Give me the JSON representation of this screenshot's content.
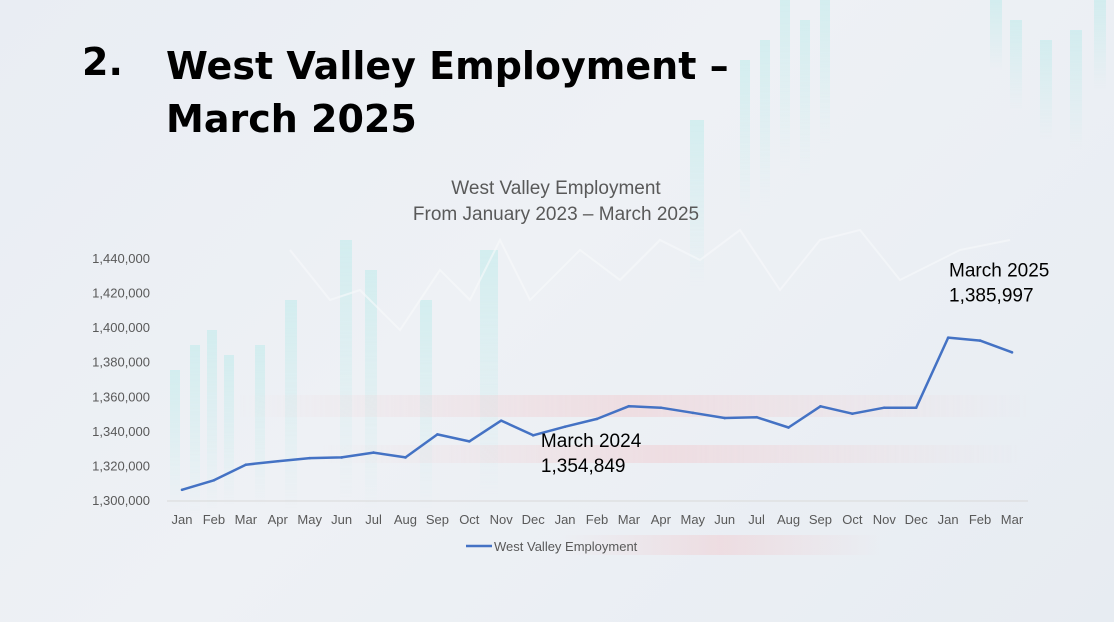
{
  "slide": {
    "number": "2.",
    "title_line1": "West Valley Employment –",
    "title_line2": "March 2025"
  },
  "chart_data": {
    "type": "line",
    "title": "West Valley Employment",
    "subtitle": "From January 2023 – March 2025",
    "categories": [
      "Jan",
      "Feb",
      "Mar",
      "Apr",
      "May",
      "Jun",
      "Jul",
      "Aug",
      "Sep",
      "Oct",
      "Nov",
      "Dec",
      "Jan",
      "Feb",
      "Mar",
      "Apr",
      "May",
      "Jun",
      "Jul",
      "Aug",
      "Sep",
      "Oct",
      "Nov",
      "Dec",
      "Jan",
      "Feb",
      "Mar"
    ],
    "series": [
      {
        "name": "West Valley Employment",
        "color": "#4472c4",
        "values": [
          1306500,
          1312000,
          1321000,
          1323000,
          1324800,
          1325200,
          1328000,
          1325200,
          1338500,
          1334500,
          1346500,
          1338000,
          1343000,
          1347500,
          1354849,
          1354000,
          1351000,
          1348000,
          1348500,
          1342500,
          1354800,
          1350500,
          1354000,
          1354000,
          1394500,
          1392800,
          1385997
        ]
      }
    ],
    "ylim": [
      1300000,
      1440000
    ],
    "yticks": [
      1300000,
      1320000,
      1340000,
      1360000,
      1380000,
      1400000,
      1420000,
      1440000
    ],
    "ytick_labels": [
      "1,300,000",
      "1,320,000",
      "1,340,000",
      "1,360,000",
      "1,380,000",
      "1,400,000",
      "1,420,000",
      "1,440,000"
    ],
    "grid": false,
    "legend": "bottom",
    "annotations": [
      {
        "index": 14,
        "line1": "March 2024",
        "line2": "1,354,849"
      },
      {
        "index": 26,
        "line1": "March 2025",
        "line2": "1,385,997"
      }
    ]
  }
}
